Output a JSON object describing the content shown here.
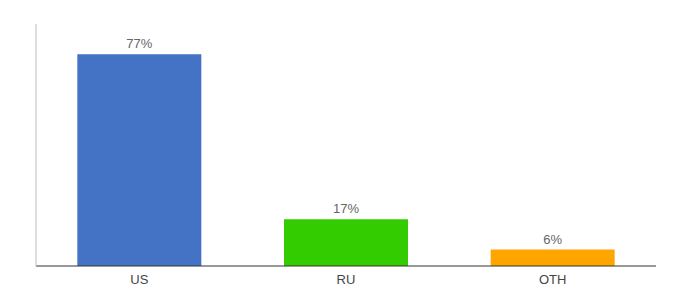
{
  "chart_data": {
    "type": "bar",
    "categories": [
      "US",
      "RU",
      "OTH"
    ],
    "values": [
      77,
      17,
      6
    ],
    "value_labels": [
      "77%",
      "17%",
      "6%"
    ],
    "colors": [
      "#4472C4",
      "#33CC00",
      "#FFA500"
    ],
    "ylim": [
      0,
      88
    ],
    "data_labels": true,
    "tick_labels": "x",
    "grid": false
  }
}
